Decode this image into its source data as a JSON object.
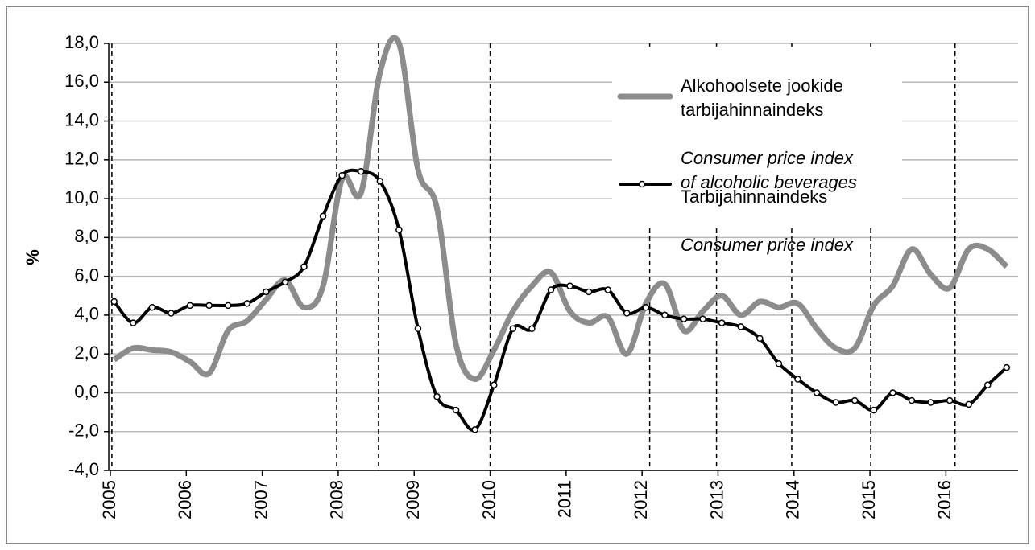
{
  "chart_data": {
    "type": "line",
    "y_label": "%",
    "xlim": [
      2005,
      2016.95
    ],
    "xticks": [
      2005,
      2006,
      2007,
      2008,
      2009,
      2010,
      2011,
      2012,
      2013,
      2014,
      2015,
      2016
    ],
    "ylim": [
      -4,
      18
    ],
    "yticks": [
      {
        "value": -4,
        "label": "-4,0"
      },
      {
        "value": -2,
        "label": "-2,0"
      },
      {
        "value": 0,
        "label": "0,0"
      },
      {
        "value": 2,
        "label": "2,0"
      },
      {
        "value": 4,
        "label": "4,0"
      },
      {
        "value": 6,
        "label": "6,0"
      },
      {
        "value": 8,
        "label": "8,0"
      },
      {
        "value": 10,
        "label": "10,0"
      },
      {
        "value": 12,
        "label": "12,0"
      },
      {
        "value": 14,
        "label": "14,0"
      },
      {
        "value": 16,
        "label": "16,0"
      },
      {
        "value": 18,
        "label": "18,0"
      }
    ],
    "grid": true,
    "reference_lines": [
      2005.02,
      2007.98,
      2008.53,
      2010.0,
      2012.1,
      2012.98,
      2013.97,
      2015.01,
      2016.12
    ],
    "x": [
      2005.05,
      2005.3,
      2005.55,
      2005.8,
      2006.05,
      2006.3,
      2006.55,
      2006.8,
      2007.05,
      2007.3,
      2007.55,
      2007.8,
      2008.05,
      2008.3,
      2008.55,
      2008.8,
      2009.05,
      2009.3,
      2009.55,
      2009.8,
      2010.05,
      2010.3,
      2010.55,
      2010.8,
      2011.05,
      2011.3,
      2011.55,
      2011.8,
      2012.05,
      2012.3,
      2012.55,
      2012.8,
      2013.05,
      2013.3,
      2013.55,
      2013.8,
      2014.05,
      2014.3,
      2014.55,
      2014.8,
      2015.05,
      2015.3,
      2015.55,
      2015.8,
      2016.05,
      2016.3,
      2016.55,
      2016.8
    ],
    "series": [
      {
        "name": "Alkohoolsete jookide\ntarbijahinnaindeks",
        "name_en": "Consumer price index\nof alcoholic beverages",
        "color": "#8c8c8c",
        "markers": false,
        "values": [
          1.7,
          2.3,
          2.2,
          2.1,
          1.6,
          1.0,
          3.2,
          3.7,
          4.8,
          5.8,
          4.4,
          5.5,
          11.0,
          10.3,
          16.5,
          18.0,
          11.5,
          9.5,
          2.5,
          0.7,
          2.2,
          4.2,
          5.5,
          6.2,
          4.2,
          3.6,
          3.9,
          2.0,
          4.6,
          5.6,
          3.2,
          4.2,
          5.0,
          4.0,
          4.7,
          4.4,
          4.6,
          3.3,
          2.3,
          2.3,
          4.5,
          5.5,
          7.4,
          6.1,
          5.4,
          7.4,
          7.4,
          6.5
        ]
      },
      {
        "name": "Tarbijahinnaindeks",
        "name_en": "Consumer price index",
        "color": "#000000",
        "markers": true,
        "values": [
          4.7,
          3.6,
          4.4,
          4.1,
          4.5,
          4.5,
          4.5,
          4.6,
          5.2,
          5.7,
          6.5,
          9.1,
          11.2,
          11.4,
          10.9,
          8.4,
          3.3,
          -0.2,
          -0.9,
          -1.9,
          0.4,
          3.3,
          3.3,
          5.3,
          5.5,
          5.2,
          5.3,
          4.1,
          4.4,
          4.0,
          3.8,
          3.8,
          3.6,
          3.4,
          2.8,
          1.5,
          0.7,
          0.0,
          -0.5,
          -0.4,
          -0.9,
          0.0,
          -0.4,
          -0.5,
          -0.4,
          -0.6,
          0.4,
          1.3
        ]
      }
    ]
  }
}
